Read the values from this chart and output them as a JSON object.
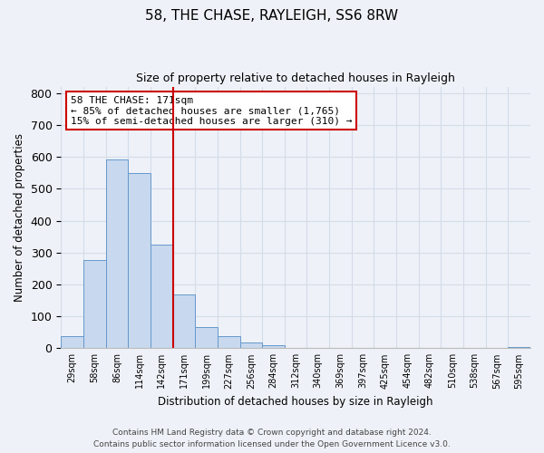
{
  "title": "58, THE CHASE, RAYLEIGH, SS6 8RW",
  "subtitle": "Size of property relative to detached houses in Rayleigh",
  "xlabel": "Distribution of detached houses by size in Rayleigh",
  "ylabel": "Number of detached properties",
  "bin_labels": [
    "29sqm",
    "58sqm",
    "86sqm",
    "114sqm",
    "142sqm",
    "171sqm",
    "199sqm",
    "227sqm",
    "256sqm",
    "284sqm",
    "312sqm",
    "340sqm",
    "369sqm",
    "397sqm",
    "425sqm",
    "454sqm",
    "482sqm",
    "510sqm",
    "538sqm",
    "567sqm",
    "595sqm"
  ],
  "bar_heights": [
    38,
    278,
    591,
    549,
    325,
    170,
    67,
    38,
    18,
    10,
    0,
    0,
    0,
    0,
    0,
    0,
    0,
    0,
    0,
    0,
    5
  ],
  "bar_color": "#c8d8ee",
  "bar_edge_color": "#6699cc",
  "vline_x_index": 5,
  "vline_color": "#cc0000",
  "ylim": [
    0,
    820
  ],
  "yticks": [
    0,
    100,
    200,
    300,
    400,
    500,
    600,
    700,
    800
  ],
  "annotation_title": "58 THE CHASE: 171sqm",
  "annotation_line1": "← 85% of detached houses are smaller (1,765)",
  "annotation_line2": "15% of semi-detached houses are larger (310) →",
  "annotation_box_color": "#ffffff",
  "annotation_box_edge": "#cc0000",
  "grid_color": "#d4dce8",
  "background_color": "#eef2f8",
  "footer_line1": "Contains HM Land Registry data © Crown copyright and database right 2024.",
  "footer_line2": "Contains public sector information licensed under the Open Government Licence v3.0."
}
